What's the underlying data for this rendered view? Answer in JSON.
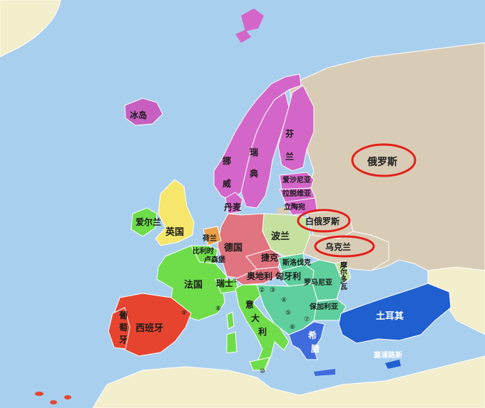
{
  "colors": {
    "sea": "#a9cfee",
    "land_neutral": "#f3eecb",
    "russia": "#d9ccb6",
    "nordic": "#d466c9",
    "baltic": "#d466c9",
    "western": "#6fdd4a",
    "central": "#e07480",
    "poland": "#c6e0a0",
    "balkans": "#5fcf9d",
    "spain": "#e7442f",
    "turkey": "#1f5fcf",
    "greece": "#3f6bdd",
    "iceland": "#c65fc0",
    "uk": "#f6e66b",
    "highlight": "#e3201b"
  },
  "labels": {
    "iceland": "冰岛",
    "norway": [
      "挪",
      "威"
    ],
    "sweden": [
      "瑞",
      "典"
    ],
    "finland": [
      "芬",
      "兰"
    ],
    "estonia": "爱沙尼亚",
    "latvia": "拉脱维亚",
    "lithuania": "立陶宛",
    "denmark": "丹麦",
    "ireland": "爱尔兰",
    "uk": "英国",
    "netherlands": "荷兰",
    "belgium": "比利时",
    "luxembourg": "卢森堡",
    "germany": "德国",
    "poland": "波兰",
    "belarus": "白俄罗斯",
    "ukraine": "乌克兰",
    "russia": "俄罗斯",
    "czech": "捷克",
    "slovakia": "斯洛伐克",
    "austria": "奥地利",
    "hungary": "匈牙利",
    "moldova": [
      "摩",
      "尔",
      "多",
      "瓦"
    ],
    "romania": "罗马尼亚",
    "bulgaria": "保加利亚",
    "france": "法国",
    "switzerland": "瑞士",
    "italy": [
      "意",
      "大",
      "利"
    ],
    "portugal": [
      "葡",
      "萄",
      "牙"
    ],
    "spain": "西班牙",
    "greece": [
      "希",
      "腊"
    ],
    "turkey": "土耳其",
    "cyprus": "塞浦路斯"
  },
  "markers": [
    "①",
    "②",
    "③",
    "④",
    "⑤",
    "⑥",
    "⑦",
    "⑧",
    "⑨",
    "⑩"
  ]
}
